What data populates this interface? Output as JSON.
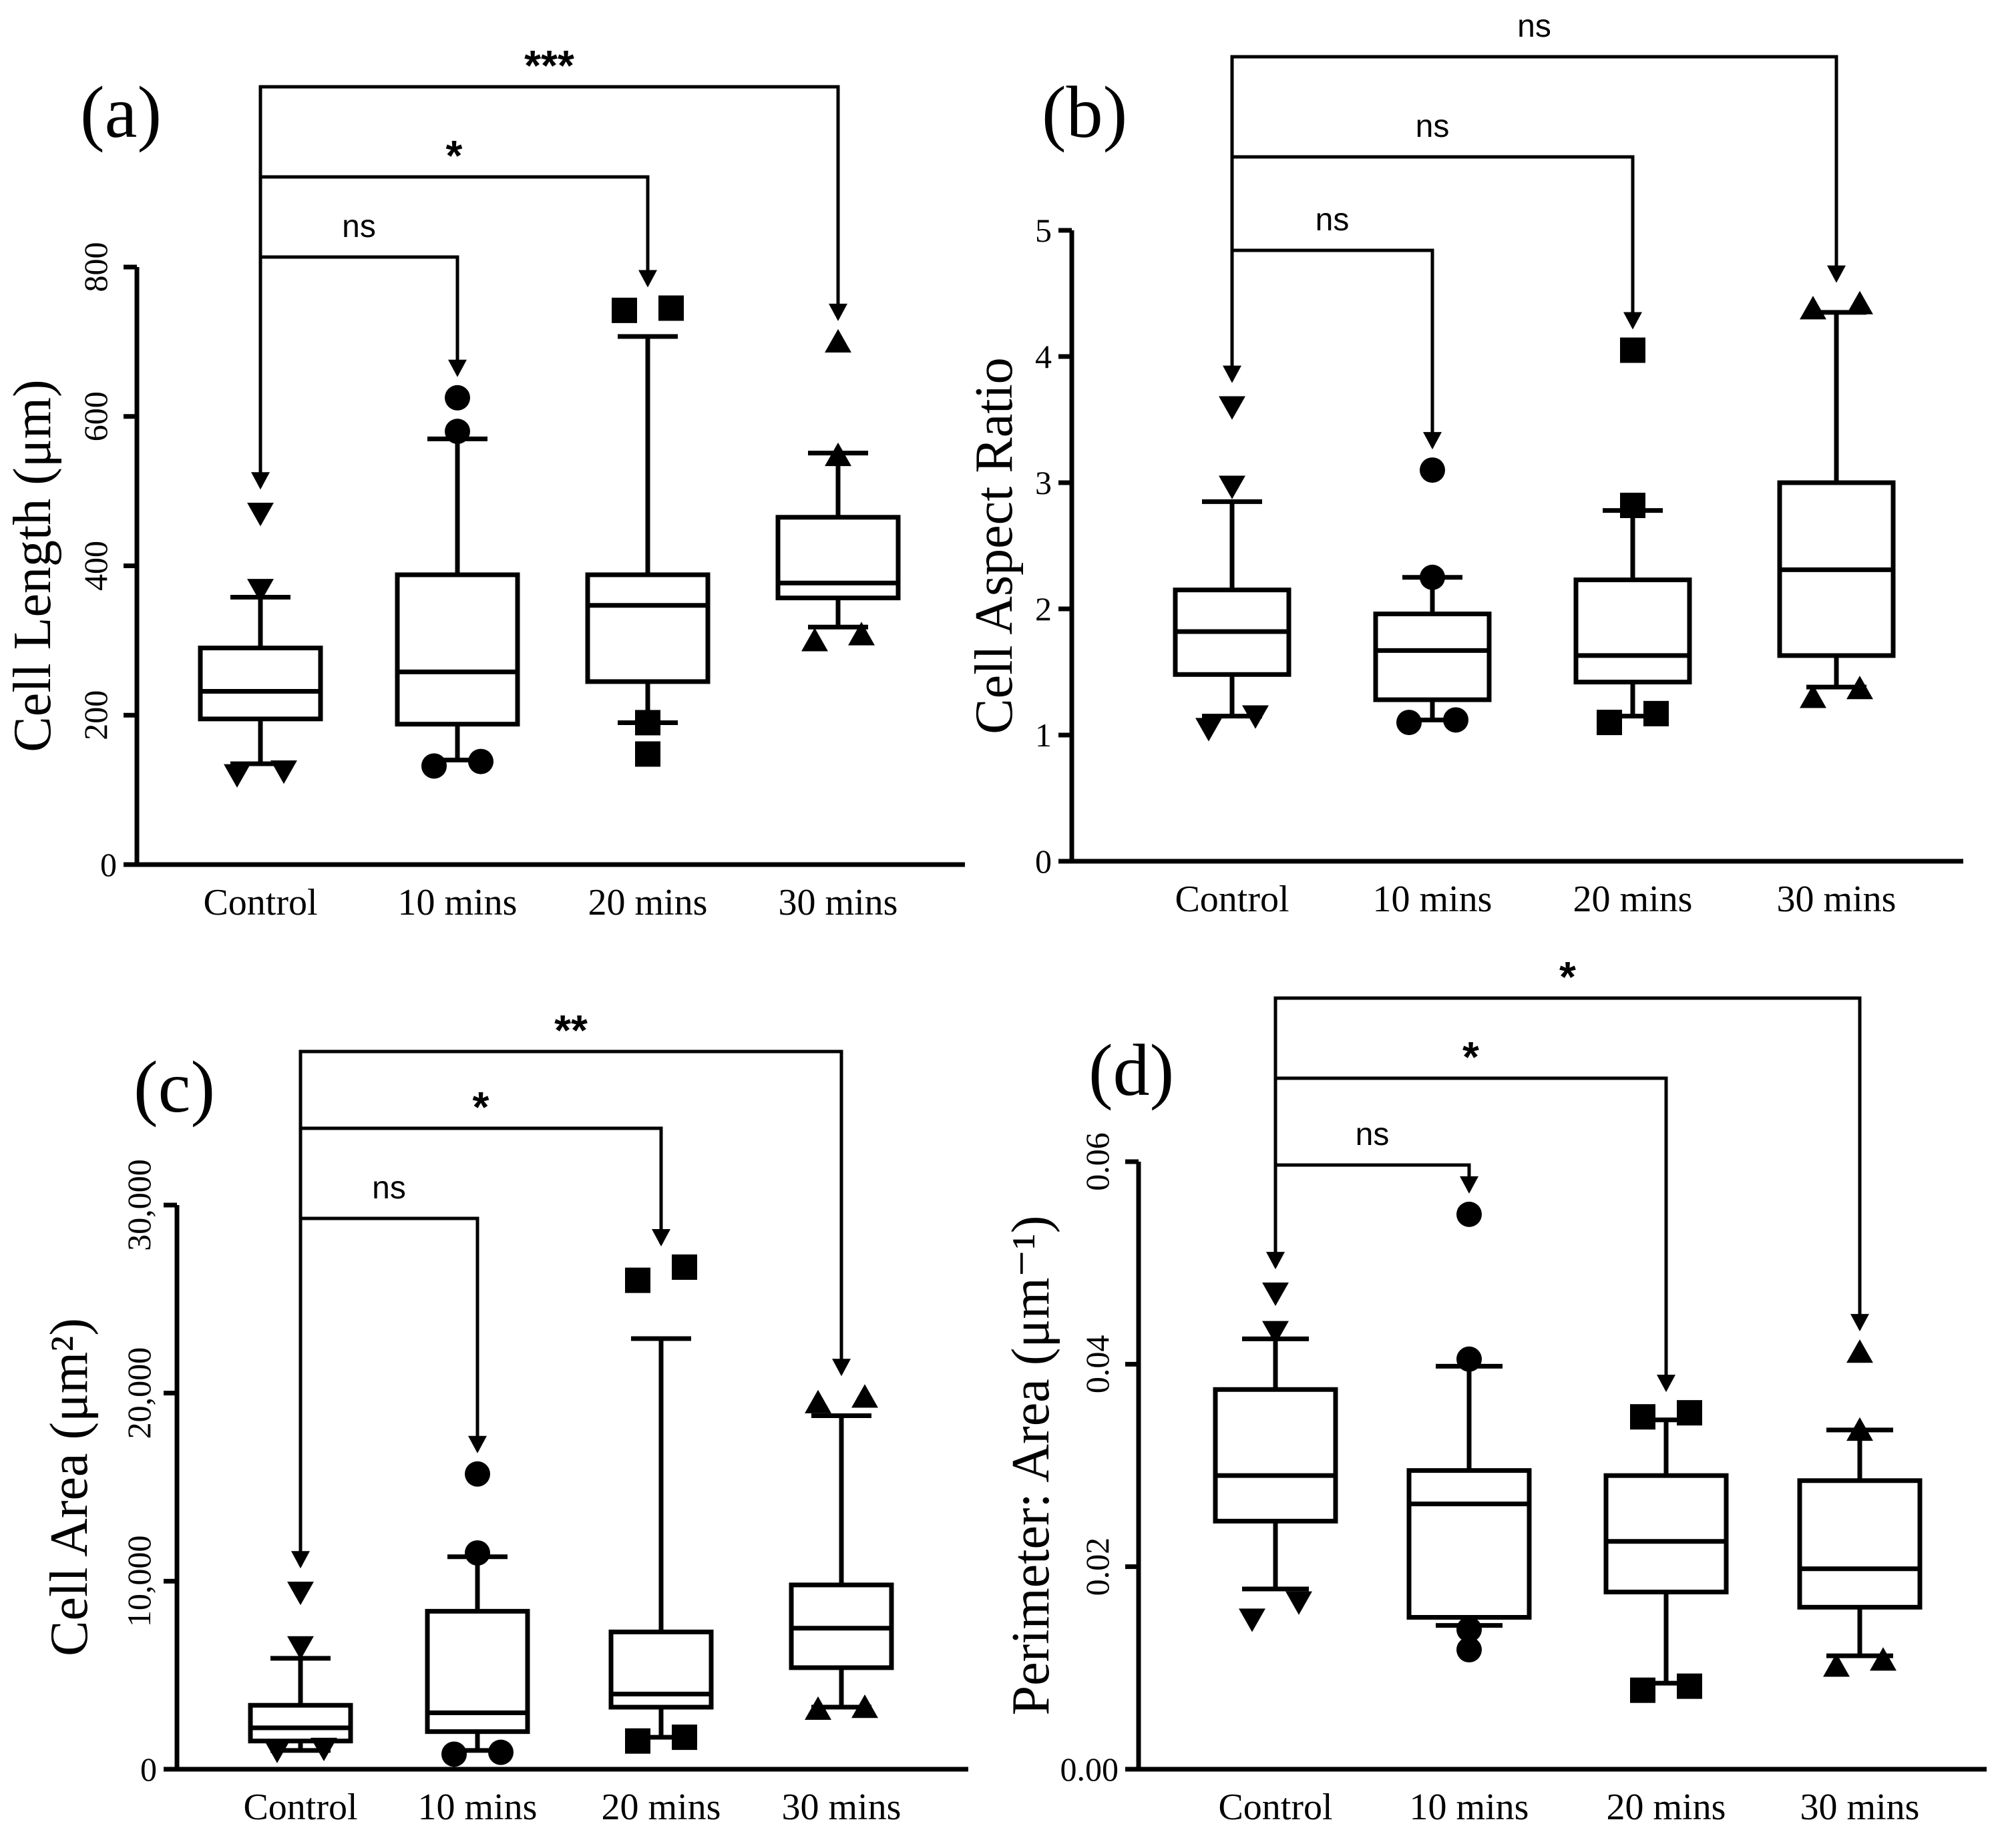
{
  "chart_data": [
    {
      "type": "box",
      "panel": "(a)",
      "ylabel": "Cell Length (μm)",
      "ylim": [
        0,
        800
      ],
      "yticks": [
        0,
        200,
        400,
        600,
        800
      ],
      "ytick_labels": [
        "0",
        "200",
        "400",
        "600",
        "800"
      ],
      "categories": [
        "Control",
        "10 mins",
        "20 mins",
        "30 mins"
      ],
      "marker_shapes": [
        "triangle-down",
        "circle",
        "square",
        "triangle-up"
      ],
      "boxes": [
        {
          "whisker_low": 135,
          "q1": 195,
          "median": 232,
          "q3": 290,
          "whisker_high": 358
        },
        {
          "whisker_low": 140,
          "q1": 188,
          "median": 258,
          "q3": 388,
          "whisker_high": 570
        },
        {
          "whisker_low": 190,
          "q1": 245,
          "median": 347,
          "q3": 388,
          "whisker_high": 707
        },
        {
          "whisker_low": 318,
          "q1": 357,
          "median": 377,
          "q3": 465,
          "whisker_high": 551
        }
      ],
      "outliers": [
        [
          {
            "y": 120,
            "side": "left"
          },
          {
            "y": 125,
            "side": "right"
          },
          {
            "y": 470,
            "side": "center"
          },
          {
            "y": 368,
            "side": "center"
          }
        ],
        [
          {
            "y": 132,
            "side": "left"
          },
          {
            "y": 138,
            "side": "right"
          },
          {
            "y": 625,
            "side": "center"
          },
          {
            "y": 580,
            "side": "center"
          }
        ],
        [
          {
            "y": 190,
            "side": "center"
          },
          {
            "y": 148,
            "side": "center"
          },
          {
            "y": 742,
            "side": "left"
          },
          {
            "y": 745,
            "side": "right"
          }
        ],
        [
          {
            "y": 300,
            "side": "left"
          },
          {
            "y": 308,
            "side": "right"
          },
          {
            "y": 700,
            "side": "center"
          },
          {
            "y": 548,
            "side": "center"
          }
        ]
      ],
      "comparisons": [
        {
          "from": "Control",
          "to": "10 mins",
          "label": "ns"
        },
        {
          "from": "Control",
          "to": "20 mins",
          "label": "*"
        },
        {
          "from": "Control",
          "to": "30 mins",
          "label": "***"
        }
      ]
    },
    {
      "type": "box",
      "panel": "(b)",
      "ylabel": "Cell Aspect Ratio",
      "ylim": [
        0,
        5
      ],
      "yticks": [
        0,
        1,
        2,
        3,
        4,
        5
      ],
      "ytick_labels": [
        "0",
        "1",
        "2",
        "3",
        "4",
        "5"
      ],
      "categories": [
        "Control",
        "10 mins",
        "20 mins",
        "30 mins"
      ],
      "marker_shapes": [
        "triangle-down",
        "circle",
        "square",
        "triangle-up"
      ],
      "boxes": [
        {
          "whisker_low": 1.15,
          "q1": 1.48,
          "median": 1.82,
          "q3": 2.15,
          "whisker_high": 2.85
        },
        {
          "whisker_low": 1.12,
          "q1": 1.28,
          "median": 1.67,
          "q3": 1.96,
          "whisker_high": 2.25
        },
        {
          "whisker_low": 1.15,
          "q1": 1.42,
          "median": 1.63,
          "q3": 2.23,
          "whisker_high": 2.78
        },
        {
          "whisker_low": 1.38,
          "q1": 1.63,
          "median": 2.31,
          "q3": 3.0,
          "whisker_high": 4.35
        }
      ],
      "outliers": [
        [
          {
            "y": 1.05,
            "side": "left"
          },
          {
            "y": 1.15,
            "side": "right"
          },
          {
            "y": 3.6,
            "side": "center"
          },
          {
            "y": 2.97,
            "side": "center"
          }
        ],
        [
          {
            "y": 1.1,
            "side": "left"
          },
          {
            "y": 1.12,
            "side": "right"
          },
          {
            "y": 3.1,
            "side": "center"
          },
          {
            "y": 2.25,
            "side": "center"
          }
        ],
        [
          {
            "y": 1.1,
            "side": "left"
          },
          {
            "y": 1.17,
            "side": "right"
          },
          {
            "y": 4.05,
            "side": "center"
          },
          {
            "y": 2.82,
            "side": "center"
          }
        ],
        [
          {
            "y": 1.3,
            "side": "left"
          },
          {
            "y": 1.37,
            "side": "right"
          },
          {
            "y": 4.38,
            "side": "left"
          },
          {
            "y": 4.42,
            "side": "right"
          }
        ]
      ],
      "comparisons": [
        {
          "from": "Control",
          "to": "10 mins",
          "label": "ns"
        },
        {
          "from": "Control",
          "to": "20 mins",
          "label": "ns"
        },
        {
          "from": "Control",
          "to": "30 mins",
          "label": "ns"
        }
      ]
    },
    {
      "type": "box",
      "panel": "(c)",
      "ylabel": "Cell Area (μm²)",
      "ylim": [
        0,
        30000
      ],
      "yticks": [
        0,
        10000,
        20000,
        30000
      ],
      "ytick_labels": [
        "0",
        "10,000",
        "20,000",
        "30,000"
      ],
      "categories": [
        "Control",
        "10 mins",
        "20 mins",
        "30 mins"
      ],
      "marker_shapes": [
        "triangle-down",
        "circle",
        "square",
        "triangle-up"
      ],
      "boxes": [
        {
          "whisker_low": 1000,
          "q1": 1500,
          "median": 2200,
          "q3": 3400,
          "whisker_high": 5900
        },
        {
          "whisker_low": 1000,
          "q1": 2000,
          "median": 3000,
          "q3": 8400,
          "whisker_high": 11300
        },
        {
          "whisker_low": 1700,
          "q1": 3300,
          "median": 4000,
          "q3": 7300,
          "whisker_high": 22900
        },
        {
          "whisker_low": 3300,
          "q1": 5400,
          "median": 7500,
          "q3": 9800,
          "whisker_high": 18800
        }
      ],
      "outliers": [
        [
          {
            "y": 1000,
            "side": "left"
          },
          {
            "y": 1100,
            "side": "right"
          },
          {
            "y": 9400,
            "side": "center"
          },
          {
            "y": 6500,
            "side": "center"
          }
        ],
        [
          {
            "y": 800,
            "side": "left"
          },
          {
            "y": 900,
            "side": "right"
          },
          {
            "y": 15700,
            "side": "center"
          },
          {
            "y": 11500,
            "side": "center"
          }
        ],
        [
          {
            "y": 1500,
            "side": "left"
          },
          {
            "y": 1700,
            "side": "right"
          },
          {
            "y": 26000,
            "side": "left"
          },
          {
            "y": 26700,
            "side": "right"
          }
        ],
        [
          {
            "y": 3200,
            "side": "left"
          },
          {
            "y": 3300,
            "side": "right"
          },
          {
            "y": 19500,
            "side": "left"
          },
          {
            "y": 19800,
            "side": "right"
          }
        ]
      ],
      "comparisons": [
        {
          "from": "Control",
          "to": "10 mins",
          "label": "ns"
        },
        {
          "from": "Control",
          "to": "20 mins",
          "label": "*"
        },
        {
          "from": "Control",
          "to": "30 mins",
          "label": "**"
        }
      ]
    },
    {
      "type": "box",
      "panel": "(d)",
      "ylabel": "Perimeter: Area (μm⁻¹)",
      "ylim": [
        0,
        0.06
      ],
      "yticks": [
        0,
        0.02,
        0.04,
        0.06
      ],
      "ytick_labels": [
        "0.00",
        "0.02",
        "0.04",
        "0.06"
      ],
      "categories": [
        "Control",
        "10 mins",
        "20 mins",
        "30 mins"
      ],
      "marker_shapes": [
        "triangle-down",
        "circle",
        "square",
        "triangle-up"
      ],
      "boxes": [
        {
          "whisker_low": 0.0178,
          "q1": 0.0245,
          "median": 0.029,
          "q3": 0.0375,
          "whisker_high": 0.0425
        },
        {
          "whisker_low": 0.0142,
          "q1": 0.015,
          "median": 0.0262,
          "q3": 0.0295,
          "whisker_high": 0.0398
        },
        {
          "whisker_low": 0.0085,
          "q1": 0.0175,
          "median": 0.0225,
          "q3": 0.029,
          "whisker_high": 0.0345
        },
        {
          "whisker_low": 0.0112,
          "q1": 0.016,
          "median": 0.0198,
          "q3": 0.0285,
          "whisker_high": 0.0335
        }
      ],
      "outliers": [
        [
          {
            "y": 0.0148,
            "side": "left"
          },
          {
            "y": 0.0165,
            "side": "right"
          },
          {
            "y": 0.047,
            "side": "center"
          },
          {
            "y": 0.0432,
            "side": "center"
          }
        ],
        [
          {
            "y": 0.0118,
            "side": "center"
          },
          {
            "y": 0.0138,
            "side": "center"
          },
          {
            "y": 0.0548,
            "side": "center"
          },
          {
            "y": 0.0405,
            "side": "center"
          }
        ],
        [
          {
            "y": 0.0078,
            "side": "left"
          },
          {
            "y": 0.0082,
            "side": "right"
          },
          {
            "y": 0.0348,
            "side": "left"
          },
          {
            "y": 0.0352,
            "side": "right"
          }
        ],
        [
          {
            "y": 0.0102,
            "side": "left"
          },
          {
            "y": 0.0108,
            "side": "right"
          },
          {
            "y": 0.0412,
            "side": "center"
          },
          {
            "y": 0.0335,
            "side": "center"
          }
        ]
      ],
      "comparisons": [
        {
          "from": "Control",
          "to": "10 mins",
          "label": "ns"
        },
        {
          "from": "Control",
          "to": "20 mins",
          "label": "*"
        },
        {
          "from": "Control",
          "to": "30 mins",
          "label": "*"
        }
      ]
    }
  ]
}
